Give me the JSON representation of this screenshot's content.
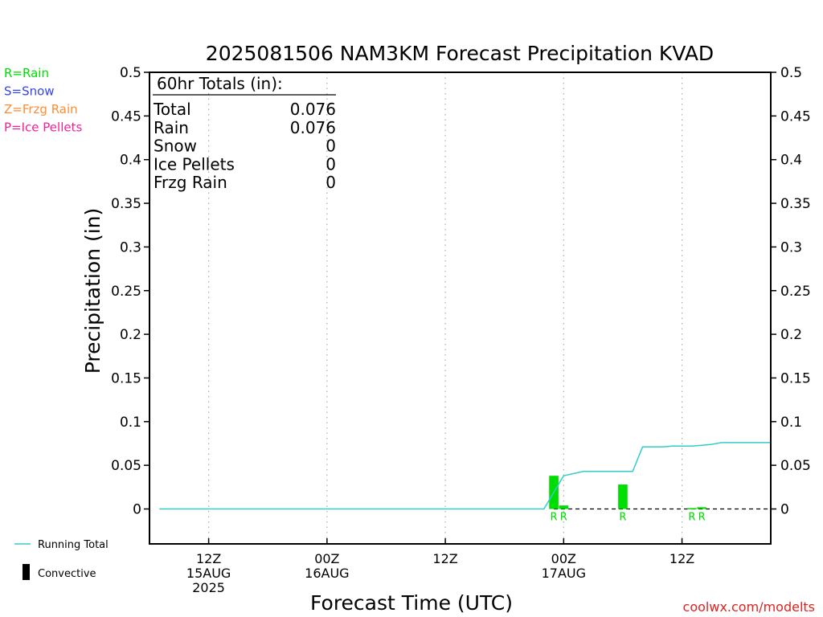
{
  "chart_data": {
    "type": "bar",
    "title": "2025081506 NAM3KM Forecast Precipitation KVAD",
    "xlabel": "Forecast Time (UTC)",
    "ylabel": "Precipitation (in)",
    "ylim": [
      -0.04,
      0.5
    ],
    "yticks": [
      0,
      0.05,
      0.1,
      0.15,
      0.2,
      0.25,
      0.3,
      0.35,
      0.4,
      0.45,
      0.5
    ],
    "ytick_labels": [
      "0",
      "0.05",
      "0.1",
      "0.15",
      "0.2",
      "0.25",
      "0.3",
      "0.35",
      "0.4",
      "0.45",
      "0.5"
    ],
    "x_units": "forecast hour",
    "xlim": [
      0,
      63
    ],
    "xticks": [
      {
        "hour": 6,
        "lines": [
          "12Z",
          "15AUG",
          "2025"
        ]
      },
      {
        "hour": 18,
        "lines": [
          "00Z",
          "16AUG"
        ]
      },
      {
        "hour": 30,
        "lines": [
          "12Z"
        ]
      },
      {
        "hour": 42,
        "lines": [
          "00Z",
          "17AUG"
        ]
      },
      {
        "hour": 54,
        "lines": [
          "12Z"
        ]
      }
    ],
    "grid": "vertical dotted",
    "bars": [
      {
        "hour": 41,
        "value": 0.038,
        "type": "R"
      },
      {
        "hour": 42,
        "value": 0.004,
        "type": "R"
      },
      {
        "hour": 48,
        "value": 0.028,
        "type": "R"
      },
      {
        "hour": 55,
        "value": 0.001,
        "type": "R"
      },
      {
        "hour": 56,
        "value": 0.002,
        "type": "R"
      }
    ],
    "series": [
      {
        "name": "Running Total",
        "hours": [
          1,
          40,
          42,
          44,
          45,
          46,
          47,
          48,
          49,
          50,
          51,
          52,
          53,
          54,
          55,
          56,
          57,
          58,
          59,
          60,
          61,
          62,
          63
        ],
        "values": [
          0,
          0,
          0.038,
          0.043,
          0.043,
          0.043,
          0.043,
          0.043,
          0.043,
          0.071,
          0.071,
          0.071,
          0.072,
          0.072,
          0.072,
          0.073,
          0.074,
          0.076,
          0.076,
          0.076,
          0.076,
          0.076,
          0.076
        ]
      }
    ],
    "type_legend": [
      {
        "label": "R=Rain",
        "color": "#00dd00"
      },
      {
        "label": "S=Snow",
        "color": "#3344ee"
      },
      {
        "label": "Z=Frzg Rain",
        "color": "#ff8c33"
      },
      {
        "label": "P=Ice Pellets",
        "color": "#ee2299"
      }
    ],
    "bottom_legend": [
      {
        "label": "Running Total",
        "symbol": "line",
        "color": "#33cccc"
      },
      {
        "label": "Convective",
        "symbol": "bar",
        "color": "#000000"
      }
    ],
    "totals_box": {
      "header": "60hr Totals (in):",
      "rows": [
        {
          "label": "Total",
          "value": "0.076"
        },
        {
          "label": "Rain",
          "value": "0.076"
        },
        {
          "label": "Snow",
          "value": "0"
        },
        {
          "label": "Ice Pellets",
          "value": "0"
        },
        {
          "label": "Frzg Rain",
          "value": "0"
        }
      ]
    },
    "colors": {
      "rain_bar": "#00dd00",
      "running_total": "#33cccc",
      "axis": "#000000",
      "grid": "#aaaaaa",
      "credit": "#dd2222"
    }
  },
  "credit": "coolwx.com/modelts"
}
